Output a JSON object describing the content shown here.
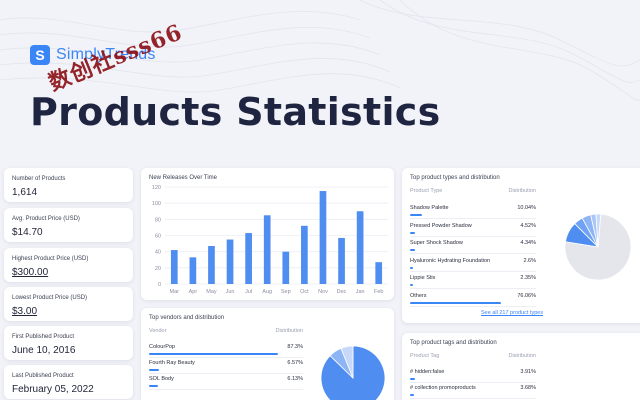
{
  "brand": {
    "logo_letter": "S",
    "name": "SimplyTrends"
  },
  "watermark": "数创社sss66",
  "page_title": "Products Statistics",
  "metrics": [
    {
      "label": "Number of Products",
      "value": "1,614",
      "underlined": false
    },
    {
      "label": "Avg. Product Price (USD)",
      "value": "$14.70",
      "underlined": false
    },
    {
      "label": "Highest Product Price (USD)",
      "value": "$300.00",
      "underlined": true
    },
    {
      "label": "Lowest Product Price (USD)",
      "value": "$3.00",
      "underlined": true
    },
    {
      "label": "First Published Product",
      "value": "June 10, 2016",
      "underlined": false
    },
    {
      "label": "Last Published Product",
      "value": "February 05, 2022",
      "underlined": false
    }
  ],
  "releases": {
    "title": "New Releases Over Time",
    "chart_data": {
      "type": "bar",
      "categories": [
        "Mar",
        "Apr",
        "May",
        "Jun",
        "Jul",
        "Aug",
        "Sep",
        "Oct",
        "Nov",
        "Dec",
        "Jan",
        "Feb"
      ],
      "values": [
        42,
        33,
        47,
        55,
        63,
        85,
        40,
        72,
        115,
        57,
        90,
        27
      ],
      "yticks": [
        0,
        20,
        40,
        60,
        80,
        100,
        120
      ],
      "ylim": [
        0,
        120
      ],
      "grid": true,
      "color": "#4f8ef0"
    }
  },
  "vendors": {
    "title": "Top vendors and distribution",
    "col_name": "Vendor",
    "col_dist": "Distribution",
    "rows": [
      {
        "name": "ColourPop",
        "dist": "87.3%",
        "pct": 87.3
      },
      {
        "name": "Fourth Ray Beauty",
        "dist": "6.57%",
        "pct": 6.57
      },
      {
        "name": "SOL Body",
        "dist": "6.13%",
        "pct": 6.13
      }
    ],
    "pie": [
      87.3,
      6.57,
      6.13
    ],
    "pie_colors": [
      "#4f8ef0",
      "#8db4f5",
      "#c6d9fa"
    ]
  },
  "product_types": {
    "title": "Top product types and distribution",
    "col_name": "Product Type",
    "col_dist": "Distribution",
    "rows": [
      {
        "name": "Shadow Palette",
        "dist": "10.04%",
        "pct": 10.04
      },
      {
        "name": "Pressed Powder Shadow",
        "dist": "4.52%",
        "pct": 4.52
      },
      {
        "name": "Super Shock Shadow",
        "dist": "4.34%",
        "pct": 4.34
      },
      {
        "name": "Hyaluronic Hydrating Foundation",
        "dist": "2.6%",
        "pct": 2.6
      },
      {
        "name": "Lippie Stix",
        "dist": "2.35%",
        "pct": 2.35
      },
      {
        "name": "Others",
        "dist": "76.06%",
        "pct": 76.06
      }
    ],
    "see_all": "See all 217 product types",
    "pie": [
      10.04,
      4.52,
      4.34,
      2.6,
      2.35,
      76.06
    ],
    "pie_colors": [
      "#4f8ef0",
      "#6fa2f2",
      "#8db4f5",
      "#a9c6f7",
      "#c6d9fa",
      "#e4e6ec"
    ]
  },
  "product_tags": {
    "title": "Top product tags and distribution",
    "col_name": "Product Tag",
    "col_dist": "Distribution",
    "rows": [
      {
        "name": "# hidden:false",
        "dist": "3.91%",
        "pct": 3.91
      },
      {
        "name": "# collection promoproducts",
        "dist": "3.68%",
        "pct": 3.68
      }
    ]
  }
}
